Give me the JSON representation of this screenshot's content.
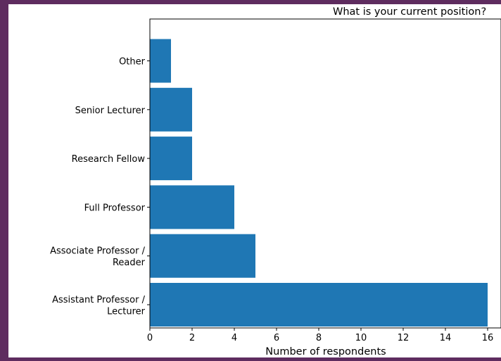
{
  "chart_data": {
    "type": "bar",
    "orientation": "horizontal",
    "title": "What is your current position?",
    "xlabel": "Number of respondents",
    "ylabel": "",
    "categories": [
      [
        "Assistant Professor /",
        "Lecturer"
      ],
      [
        "Associate Professor /",
        "Reader"
      ],
      [
        "Full Professor"
      ],
      [
        "Research Fellow"
      ],
      [
        "Senior Lecturer"
      ],
      [
        "Other"
      ]
    ],
    "values": [
      16,
      5,
      4,
      2,
      2,
      1
    ],
    "xlim": [
      0,
      16.5
    ],
    "xticks": [
      0,
      2,
      4,
      6,
      8,
      10,
      12,
      14,
      16
    ],
    "bar_color": "#1f77b4",
    "grid": false,
    "legend": "none"
  }
}
